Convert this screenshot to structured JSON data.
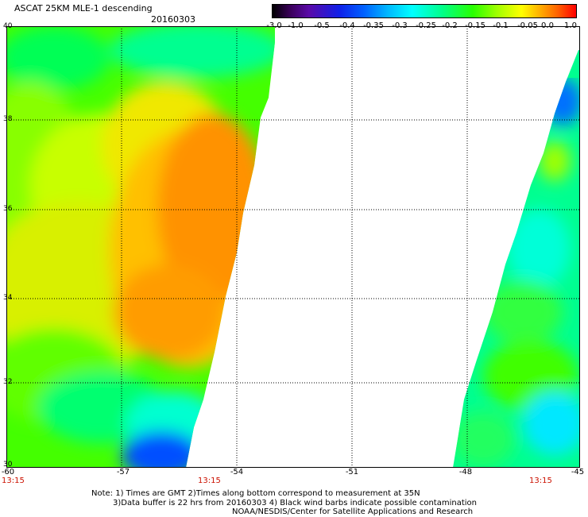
{
  "header": {
    "title": "ASCAT 25KM MLE-1 descending",
    "date": "20160303"
  },
  "colorbar": {
    "labels": [
      "-3.0",
      "-1.0",
      "-0.5",
      "-0.4",
      "-0.35",
      "-0.3",
      "-0.25",
      "-0.2",
      "-0.15",
      "-0.1",
      "-0.05",
      "0.0",
      "1.0"
    ],
    "colors": [
      "#000000",
      "#5a0aa8",
      "#0060ff",
      "#00ffff",
      "#28ff00",
      "#ffff00",
      "#ff6000",
      "#ff0000"
    ]
  },
  "map": {
    "lat_labels": [
      "40",
      "38",
      "36",
      "34",
      "32",
      "30"
    ],
    "lon_labels": [
      "-60",
      "-57",
      "-54",
      "-51",
      "-48",
      "-45"
    ],
    "time_labels": [
      "13:15",
      "13:15",
      "13:15"
    ],
    "land_color": "#ffffff",
    "grid": "dotted"
  },
  "notes": {
    "line1": "Note: 1) Times are GMT 2)Times along bottom correspond to measurement at 35N",
    "line2": "3)Data buffer is 22 hrs from 20160303 4) Black wind barbs indicate possible contamination",
    "line3": "NOAA/NESDIS/Center for Satellite Applications and Research"
  }
}
